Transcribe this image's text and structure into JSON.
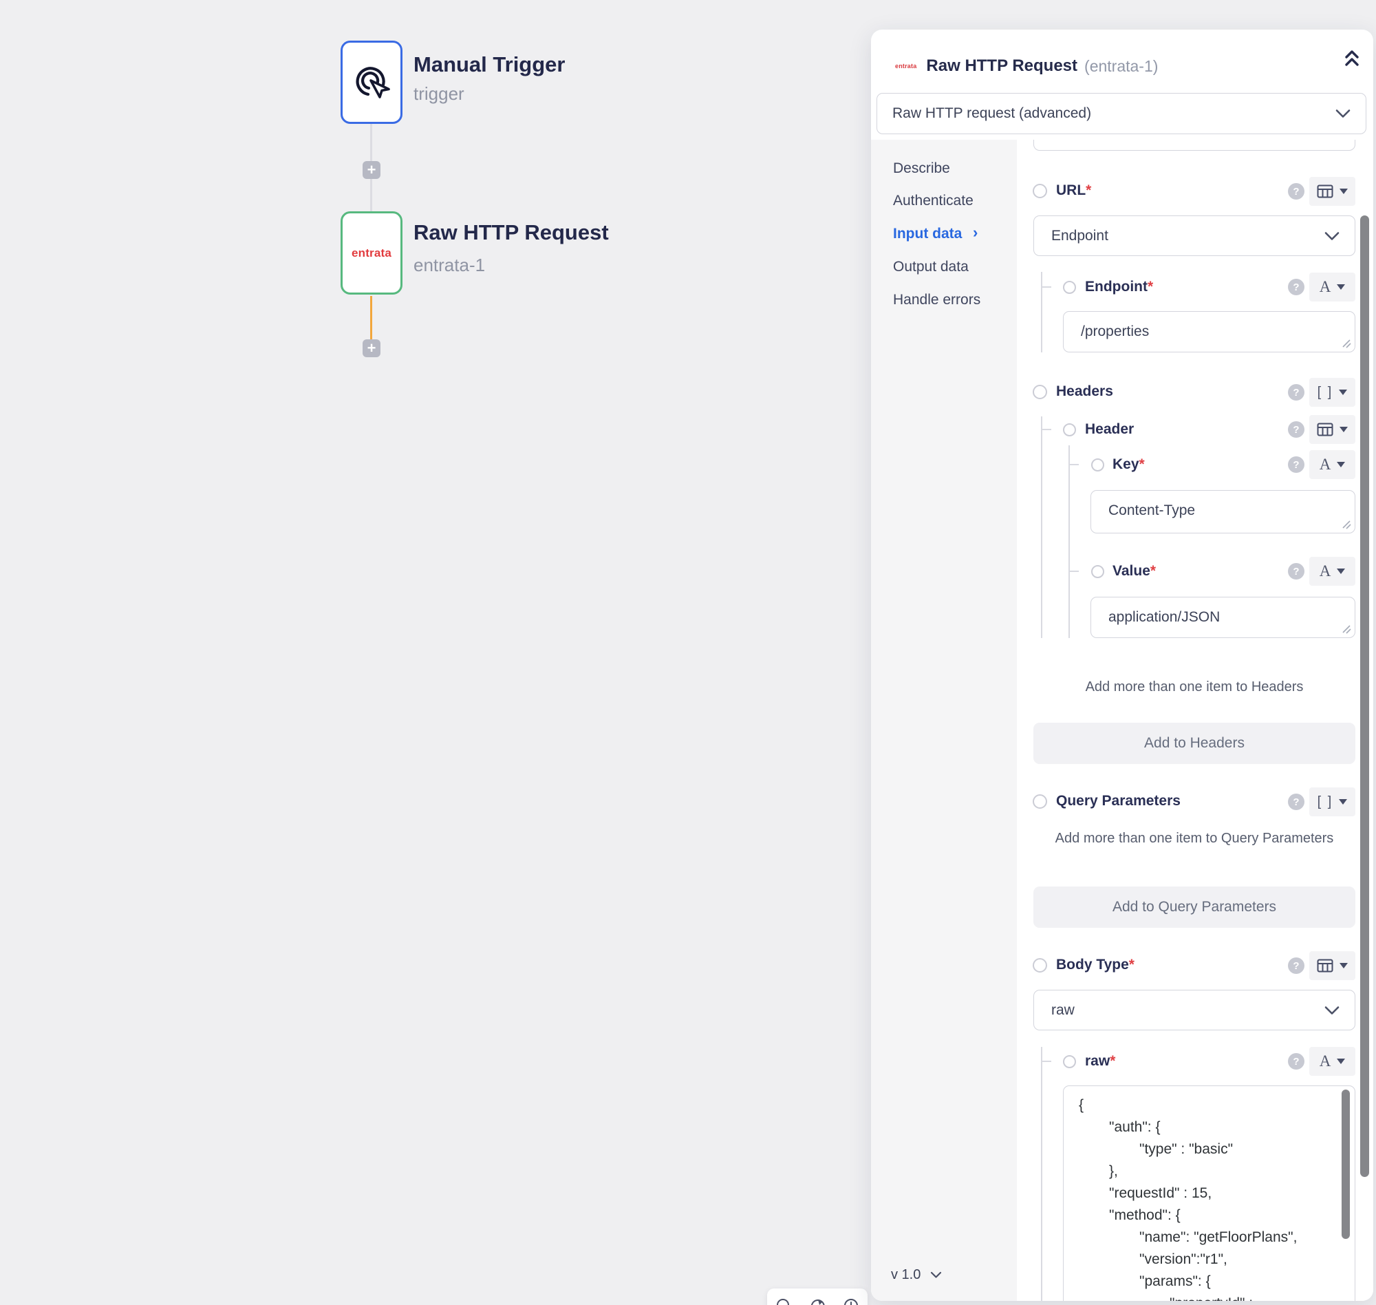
{
  "canvas": {
    "nodes": [
      {
        "title": "Manual Trigger",
        "subtitle": "trigger",
        "icon": "cursor-click"
      },
      {
        "title": "Raw HTTP Request",
        "subtitle": "entrata-1",
        "logo_text": "entrata"
      }
    ],
    "plus_glyph": "+",
    "toolbar_icons": [
      "zoom-icon",
      "redo-icon",
      "history-icon"
    ],
    "colors": {
      "trigger_border": "#3a6be4",
      "action_border": "#57b97f",
      "connector_orange": "#f2a73d",
      "entrata_red": "#e23b3e"
    }
  },
  "panel": {
    "header": {
      "logo_text": "entrata",
      "title": "Raw HTTP Request",
      "instance": "(entrata-1)"
    },
    "action_select": {
      "value": "Raw HTTP request (advanced)"
    },
    "nav": {
      "items": [
        "Describe",
        "Authenticate",
        "Input data",
        "Output data",
        "Handle errors"
      ],
      "active": "Input data",
      "arrow_glyph": "›"
    },
    "version": {
      "label": "v 1.0"
    },
    "chips": {
      "text": "A",
      "array": "[ ]"
    },
    "help_glyph": "?",
    "form": {
      "required_marker": "*",
      "url_label": "URL",
      "url_mode_value": "Endpoint",
      "endpoint_label": "Endpoint",
      "endpoint_value": "/properties",
      "headers_label": "Headers",
      "header_label": "Header",
      "key_label": "Key",
      "key_value": "Content-Type",
      "value_label": "Value",
      "value_value": "application/JSON",
      "headers_hint": "Add more than one item to Headers",
      "add_headers_button": "Add to Headers",
      "query_parameters_label": "Query Parameters",
      "query_parameters_hint": "Add more than one item to Query Parameters",
      "add_query_parameters_button": "Add to Query Parameters",
      "body_type_label": "Body Type",
      "body_type_value": "raw",
      "raw_label": "raw",
      "raw_body": {
        "lines": [
          {
            "indent": 0,
            "text": "{"
          },
          {
            "indent": 1,
            "text": "\"auth\": {"
          },
          {
            "indent": 2,
            "text": "\"type\" : \"basic\""
          },
          {
            "indent": 1,
            "text": "},"
          },
          {
            "indent": 1,
            "text": "\"requestId\" : 15,"
          },
          {
            "indent": 1,
            "text": "\"method\": {"
          },
          {
            "indent": 2,
            "text": "\"name\": \"getFloorPlans\","
          },
          {
            "indent": 2,
            "text": "\"version\":\"r1\","
          },
          {
            "indent": 2,
            "text": "\"params\": {"
          },
          {
            "indent": 3,
            "text": "\"propertyId\" :"
          }
        ]
      }
    }
  }
}
